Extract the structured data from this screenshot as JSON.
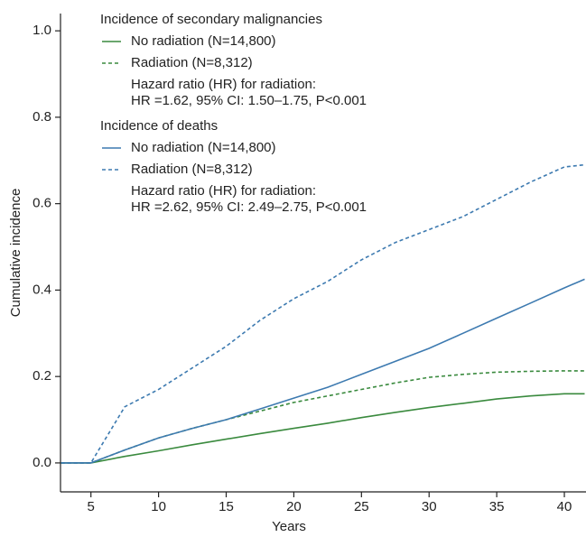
{
  "chart_data": {
    "type": "line",
    "x_label": "Years",
    "y_label": "Cumulative incidence",
    "x": [
      2.8,
      5,
      7.5,
      10,
      12.5,
      15,
      17.5,
      20,
      22.5,
      25,
      27.5,
      30,
      32.5,
      35,
      37.5,
      40,
      41.5
    ],
    "series": [
      {
        "name": "No radiation (N=14,800)",
        "color": "#3a8a3e",
        "dashed": false,
        "group": 0,
        "values": [
          0,
          0,
          0.015,
          0.028,
          0.042,
          0.055,
          0.068,
          0.08,
          0.092,
          0.105,
          0.117,
          0.128,
          0.138,
          0.148,
          0.155,
          0.16,
          0.16
        ]
      },
      {
        "name": "Radiation (N=8,312)",
        "color": "#3a8a3e",
        "dashed": true,
        "group": 0,
        "values": [
          0,
          0,
          0.03,
          0.058,
          0.08,
          0.1,
          0.12,
          0.14,
          0.155,
          0.17,
          0.185,
          0.198,
          0.205,
          0.21,
          0.212,
          0.213,
          0.213
        ]
      },
      {
        "name": "No radiation (N=14,800)",
        "color": "#3d7ab0",
        "dashed": false,
        "group": 1,
        "values": [
          0,
          0,
          0.03,
          0.058,
          0.08,
          0.1,
          0.125,
          0.15,
          0.175,
          0.205,
          0.235,
          0.265,
          0.3,
          0.335,
          0.37,
          0.405,
          0.425
        ]
      },
      {
        "name": "Radiation (N=8,312)",
        "color": "#3d7ab0",
        "dashed": true,
        "group": 1,
        "values": [
          0,
          0,
          0.13,
          0.17,
          0.22,
          0.27,
          0.33,
          0.38,
          0.42,
          0.47,
          0.51,
          0.54,
          0.57,
          0.61,
          0.65,
          0.685,
          0.69
        ]
      }
    ],
    "legend_groups": [
      {
        "title": "Incidence of secondary malignancies",
        "notes": [
          "Hazard ratio (HR) for radiation:",
          "HR =1.62, 95% CI: 1.50–1.75, P<0.001"
        ]
      },
      {
        "title": "Incidence of deaths",
        "notes": [
          "Hazard ratio (HR) for radiation:",
          "HR =2.62, 95% CI: 2.49–2.75, P<0.001"
        ]
      }
    ],
    "xlim": [
      2.75,
      41.6
    ],
    "xticks": [
      5,
      10,
      15,
      20,
      25,
      30,
      35,
      40
    ],
    "ylim": [
      -0.067,
      1.04
    ],
    "yticks": [
      {
        "value": 0,
        "label": "0.0"
      },
      0.2,
      0.4,
      0.6,
      0.8,
      {
        "value": 1,
        "label": "1.0"
      }
    ],
    "grid": false
  }
}
